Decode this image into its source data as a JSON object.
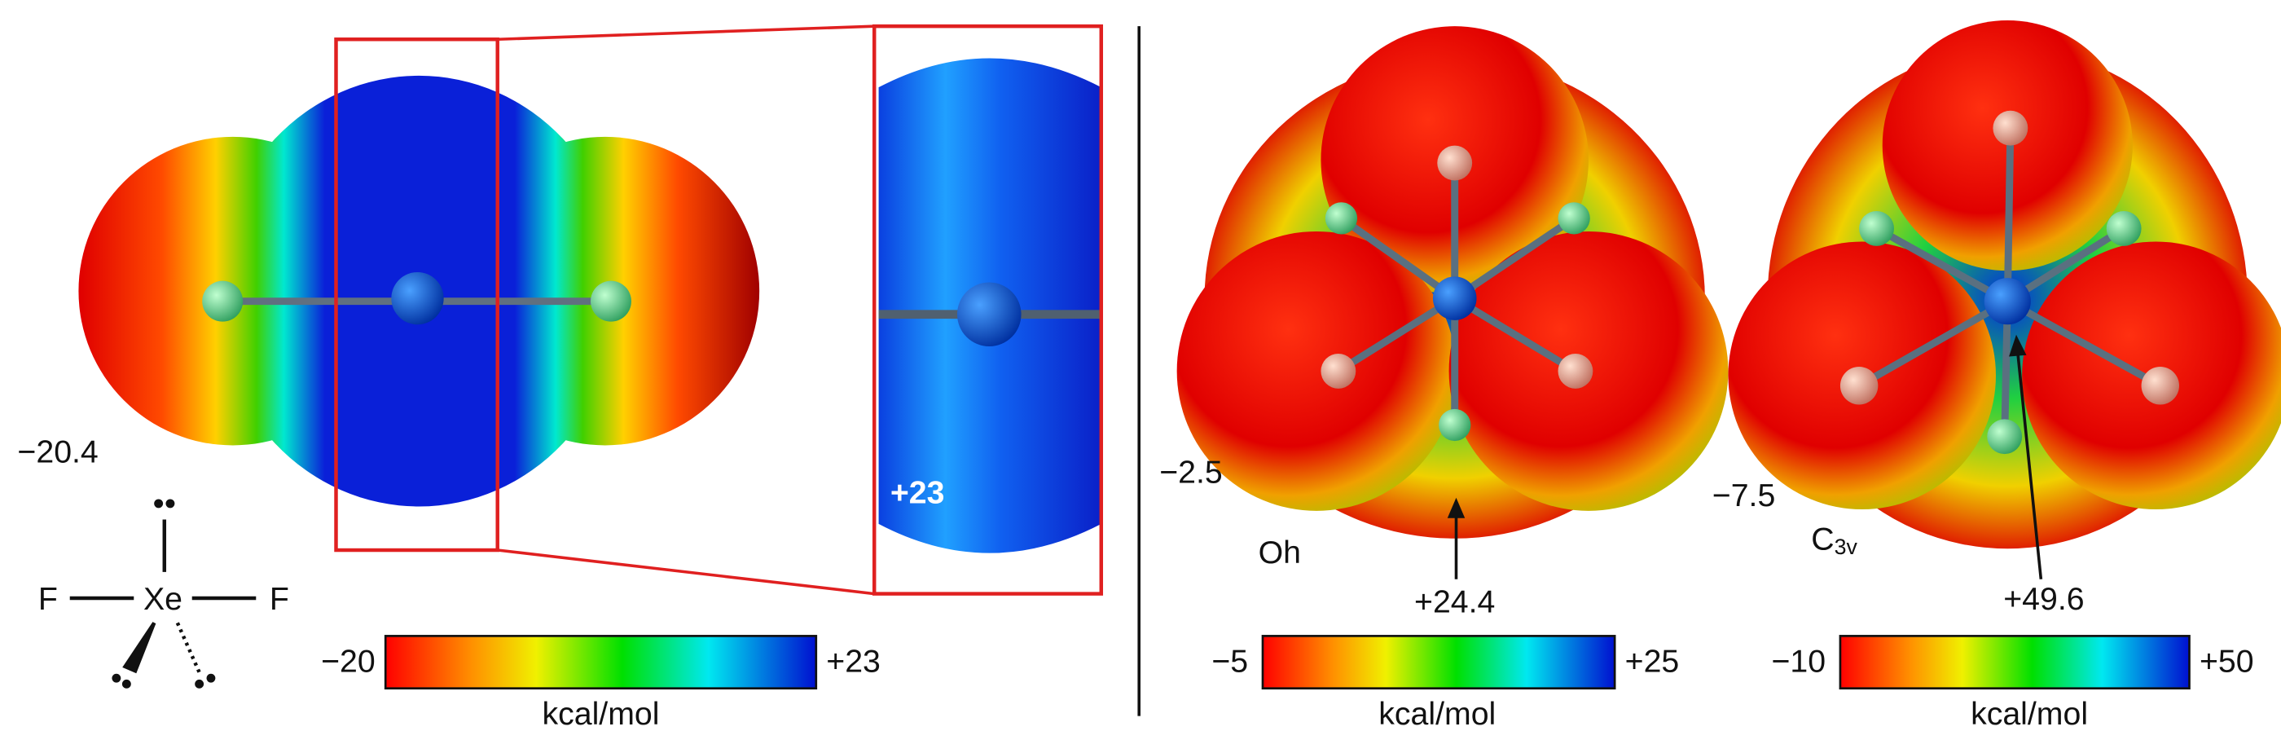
{
  "panels": [
    {
      "min_label": "−20.4",
      "zoom_label": "+23",
      "lewis": {
        "left": "F",
        "center": "Xe",
        "right": "F"
      },
      "colorbar": {
        "min": "−20",
        "max": "+23",
        "unit": "kcal/mol"
      }
    },
    {
      "min_label": "−2.5",
      "symmetry": "Oh",
      "max_label": "+24.4",
      "colorbar": {
        "min": "−5",
        "max": "+25",
        "unit": "kcal/mol"
      }
    },
    {
      "min_label": "−7.5",
      "symmetry": {
        "main": "C",
        "sub": "3v"
      },
      "max_label": "+49.6",
      "colorbar": {
        "min": "−10",
        "max": "+50",
        "unit": "kcal/mol"
      }
    }
  ]
}
